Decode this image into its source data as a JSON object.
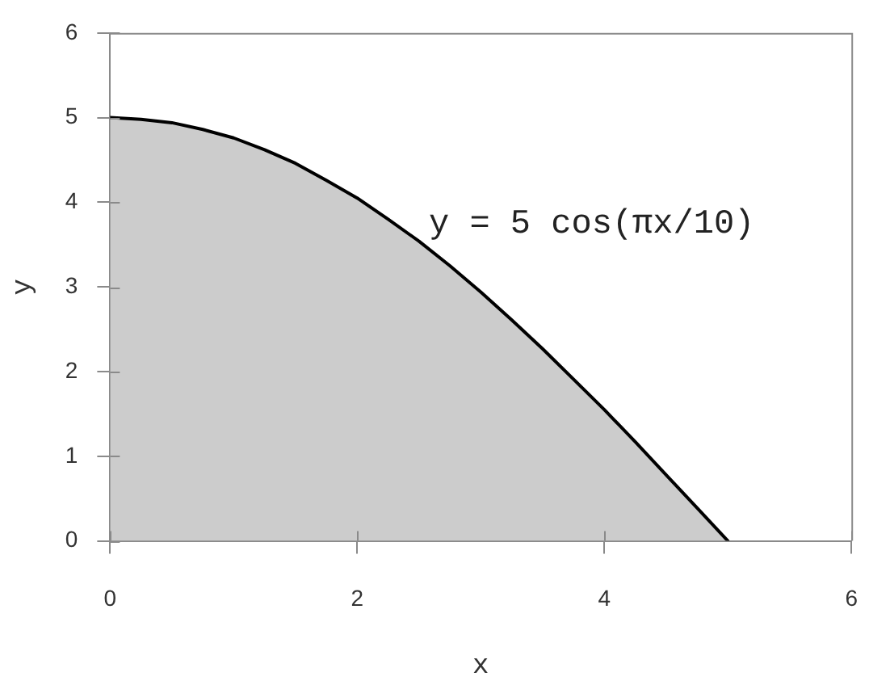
{
  "chart_data": {
    "type": "area",
    "x": [
      0,
      0.25,
      0.5,
      0.75,
      1,
      1.25,
      1.5,
      1.75,
      2,
      2.25,
      2.5,
      2.75,
      3,
      3.25,
      3.5,
      3.75,
      4,
      4.25,
      4.5,
      4.75,
      5
    ],
    "series": [
      {
        "color": "#cccccc",
        "values": [
          5,
          4.98,
          4.94,
          4.86,
          4.76,
          4.62,
          4.46,
          4.26,
          4.05,
          3.8,
          3.54,
          3.25,
          2.94,
          2.61,
          2.27,
          1.91,
          1.55,
          1.17,
          0.78,
          0.39,
          0
        ]
      }
    ],
    "xlim": [
      0,
      6
    ],
    "ylim": [
      0,
      6
    ],
    "xticks": [
      0,
      2,
      4,
      6
    ],
    "yticks": [
      0,
      1,
      2,
      3,
      4,
      5,
      6
    ],
    "xlabel": "x",
    "ylabel": "y",
    "marker": "none",
    "annotations": [
      "y = 5 cos(πx/10)"
    ]
  }
}
